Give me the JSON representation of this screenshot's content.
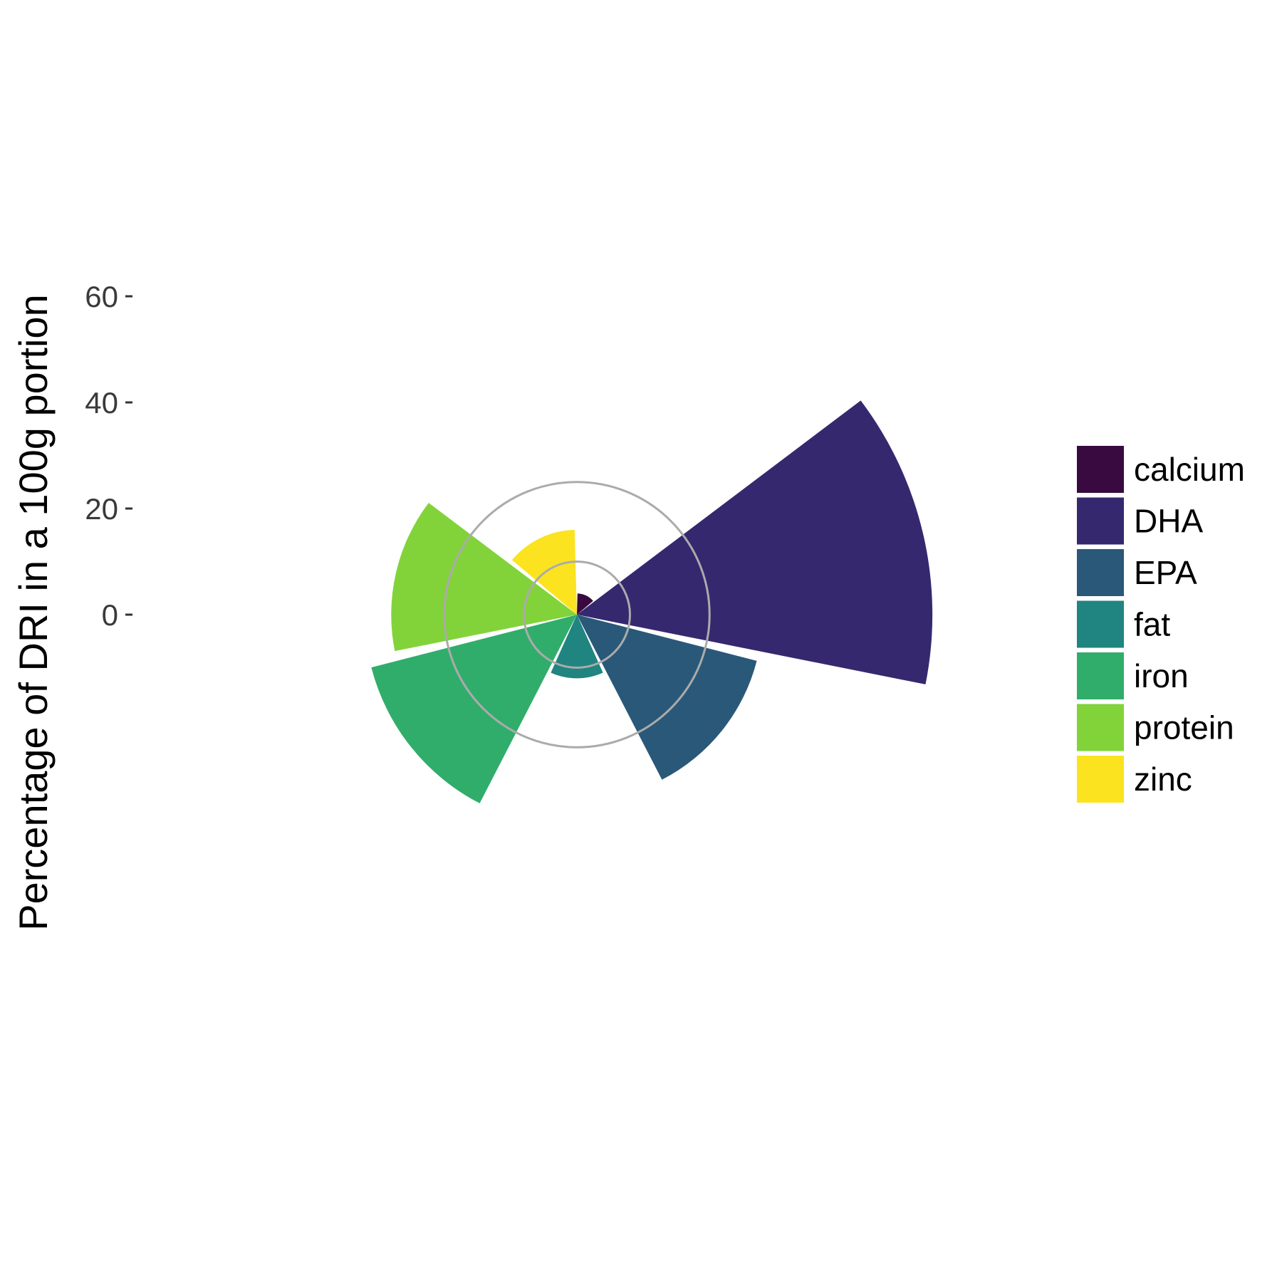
{
  "chart_data": {
    "type": "polar-bar",
    "ylabel": "Percentage of DRI in a 100g portion",
    "y_ticks": [
      "60",
      "40",
      "20",
      "0"
    ],
    "y_tick_values": [
      60,
      40,
      20,
      0
    ],
    "reference_rings": [
      10,
      25
    ],
    "categories": [
      "calcium",
      "DHA",
      "EPA",
      "fat",
      "iron",
      "protein",
      "zinc"
    ],
    "values": [
      4,
      67,
      35,
      12,
      40,
      35,
      16
    ],
    "colors": [
      "#380A40",
      "#36286E",
      "#2A5879",
      "#208480",
      "#31AD6B",
      "#82D33A",
      "#FBE31F"
    ],
    "legend_position": "right"
  }
}
